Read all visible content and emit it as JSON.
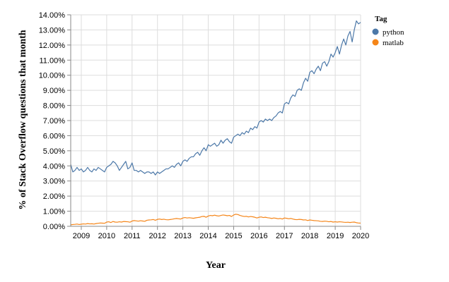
{
  "chart_data": {
    "type": "line",
    "xlabel": "Year",
    "ylabel": "% of Stack Overflow questions that month",
    "xlim": [
      "2008-08",
      "2020-01"
    ],
    "ylim": [
      0,
      14
    ],
    "y_tick_format": "percent_2dp",
    "x_ticks": [
      "2009",
      "2010",
      "2011",
      "2012",
      "2013",
      "2014",
      "2015",
      "2016",
      "2017",
      "2018",
      "2019",
      "2020"
    ],
    "y_ticks": [
      "0.00%",
      "1.00%",
      "2.00%",
      "3.00%",
      "4.00%",
      "5.00%",
      "6.00%",
      "7.00%",
      "8.00%",
      "9.00%",
      "10.00%",
      "11.00%",
      "12.00%",
      "13.00%",
      "14.00%"
    ],
    "grid": true,
    "legend": {
      "title": "Tag",
      "placement": "top-right"
    },
    "series": [
      {
        "name": "python",
        "color": "#4c78a8",
        "points": [
          [
            "2008-08",
            4.1
          ],
          [
            "2008-09",
            3.6
          ],
          [
            "2008-10",
            3.7
          ],
          [
            "2008-11",
            3.9
          ],
          [
            "2008-12",
            3.7
          ],
          [
            "2009-01",
            3.8
          ],
          [
            "2009-02",
            3.6
          ],
          [
            "2009-03",
            3.7
          ],
          [
            "2009-04",
            3.9
          ],
          [
            "2009-05",
            3.7
          ],
          [
            "2009-06",
            3.6
          ],
          [
            "2009-07",
            3.8
          ],
          [
            "2009-08",
            3.7
          ],
          [
            "2009-09",
            3.9
          ],
          [
            "2009-10",
            3.8
          ],
          [
            "2009-11",
            3.7
          ],
          [
            "2009-12",
            3.6
          ],
          [
            "2010-01",
            3.9
          ],
          [
            "2010-02",
            4.0
          ],
          [
            "2010-03",
            4.1
          ],
          [
            "2010-04",
            4.3
          ],
          [
            "2010-05",
            4.2
          ],
          [
            "2010-06",
            4.0
          ],
          [
            "2010-07",
            3.7
          ],
          [
            "2010-08",
            3.9
          ],
          [
            "2010-09",
            4.1
          ],
          [
            "2010-10",
            4.3
          ],
          [
            "2010-11",
            3.8
          ],
          [
            "2010-12",
            3.9
          ],
          [
            "2011-01",
            4.2
          ],
          [
            "2011-02",
            3.7
          ],
          [
            "2011-03",
            3.7
          ],
          [
            "2011-04",
            3.6
          ],
          [
            "2011-05",
            3.7
          ],
          [
            "2011-06",
            3.6
          ],
          [
            "2011-07",
            3.5
          ],
          [
            "2011-08",
            3.6
          ],
          [
            "2011-09",
            3.6
          ],
          [
            "2011-10",
            3.5
          ],
          [
            "2011-11",
            3.6
          ],
          [
            "2011-12",
            3.4
          ],
          [
            "2012-01",
            3.6
          ],
          [
            "2012-02",
            3.5
          ],
          [
            "2012-03",
            3.6
          ],
          [
            "2012-04",
            3.7
          ],
          [
            "2012-05",
            3.8
          ],
          [
            "2012-06",
            3.8
          ],
          [
            "2012-07",
            3.9
          ],
          [
            "2012-08",
            4.0
          ],
          [
            "2012-09",
            3.9
          ],
          [
            "2012-10",
            4.1
          ],
          [
            "2012-11",
            4.2
          ],
          [
            "2012-12",
            4.0
          ],
          [
            "2013-01",
            4.3
          ],
          [
            "2013-02",
            4.4
          ],
          [
            "2013-03",
            4.3
          ],
          [
            "2013-04",
            4.5
          ],
          [
            "2013-05",
            4.6
          ],
          [
            "2013-06",
            4.6
          ],
          [
            "2013-07",
            4.8
          ],
          [
            "2013-08",
            4.9
          ],
          [
            "2013-09",
            4.7
          ],
          [
            "2013-10",
            5.0
          ],
          [
            "2013-11",
            5.2
          ],
          [
            "2013-12",
            5.0
          ],
          [
            "2014-01",
            5.4
          ],
          [
            "2014-02",
            5.3
          ],
          [
            "2014-03",
            5.4
          ],
          [
            "2014-04",
            5.5
          ],
          [
            "2014-05",
            5.3
          ],
          [
            "2014-06",
            5.4
          ],
          [
            "2014-07",
            5.7
          ],
          [
            "2014-08",
            5.5
          ],
          [
            "2014-09",
            5.7
          ],
          [
            "2014-10",
            5.8
          ],
          [
            "2014-11",
            5.6
          ],
          [
            "2014-12",
            5.5
          ],
          [
            "2015-01",
            5.9
          ],
          [
            "2015-02",
            6.0
          ],
          [
            "2015-03",
            6.1
          ],
          [
            "2015-04",
            6.0
          ],
          [
            "2015-05",
            6.2
          ],
          [
            "2015-06",
            6.1
          ],
          [
            "2015-07",
            6.3
          ],
          [
            "2015-08",
            6.2
          ],
          [
            "2015-09",
            6.5
          ],
          [
            "2015-10",
            6.4
          ],
          [
            "2015-11",
            6.6
          ],
          [
            "2015-12",
            6.5
          ],
          [
            "2016-01",
            6.9
          ],
          [
            "2016-02",
            7.0
          ],
          [
            "2016-03",
            6.9
          ],
          [
            "2016-04",
            7.1
          ],
          [
            "2016-05",
            7.0
          ],
          [
            "2016-06",
            7.1
          ],
          [
            "2016-07",
            7.0
          ],
          [
            "2016-08",
            7.2
          ],
          [
            "2016-09",
            7.3
          ],
          [
            "2016-10",
            7.5
          ],
          [
            "2016-11",
            7.6
          ],
          [
            "2016-12",
            7.5
          ],
          [
            "2017-01",
            8.1
          ],
          [
            "2017-02",
            8.2
          ],
          [
            "2017-03",
            8.1
          ],
          [
            "2017-04",
            8.5
          ],
          [
            "2017-05",
            8.7
          ],
          [
            "2017-06",
            8.6
          ],
          [
            "2017-07",
            9.0
          ],
          [
            "2017-08",
            9.1
          ],
          [
            "2017-09",
            9.0
          ],
          [
            "2017-10",
            9.5
          ],
          [
            "2017-11",
            9.8
          ],
          [
            "2017-12",
            9.6
          ],
          [
            "2018-01",
            10.2
          ],
          [
            "2018-02",
            10.3
          ],
          [
            "2018-03",
            10.1
          ],
          [
            "2018-04",
            10.4
          ],
          [
            "2018-05",
            10.6
          ],
          [
            "2018-06",
            10.3
          ],
          [
            "2018-07",
            10.8
          ],
          [
            "2018-08",
            10.9
          ],
          [
            "2018-09",
            10.6
          ],
          [
            "2018-10",
            10.9
          ],
          [
            "2018-11",
            11.4
          ],
          [
            "2018-12",
            11.2
          ],
          [
            "2019-01",
            11.5
          ],
          [
            "2019-02",
            11.9
          ],
          [
            "2019-03",
            11.4
          ],
          [
            "2019-04",
            12.0
          ],
          [
            "2019-05",
            12.4
          ],
          [
            "2019-06",
            12.0
          ],
          [
            "2019-07",
            12.6
          ],
          [
            "2019-08",
            12.9
          ],
          [
            "2019-09",
            12.2
          ],
          [
            "2019-10",
            13.0
          ],
          [
            "2019-11",
            13.6
          ],
          [
            "2019-12",
            13.4
          ],
          [
            "2020-01",
            13.5
          ]
        ]
      },
      {
        "name": "matlab",
        "color": "#f58518",
        "points": [
          [
            "2008-08",
            0.1
          ],
          [
            "2008-09",
            0.12
          ],
          [
            "2008-10",
            0.13
          ],
          [
            "2008-11",
            0.15
          ],
          [
            "2008-12",
            0.12
          ],
          [
            "2009-01",
            0.14
          ],
          [
            "2009-02",
            0.16
          ],
          [
            "2009-03",
            0.15
          ],
          [
            "2009-04",
            0.18
          ],
          [
            "2009-05",
            0.16
          ],
          [
            "2009-06",
            0.17
          ],
          [
            "2009-07",
            0.15
          ],
          [
            "2009-08",
            0.18
          ],
          [
            "2009-09",
            0.2
          ],
          [
            "2009-10",
            0.22
          ],
          [
            "2009-11",
            0.21
          ],
          [
            "2009-12",
            0.2
          ],
          [
            "2010-01",
            0.28
          ],
          [
            "2010-02",
            0.3
          ],
          [
            "2010-03",
            0.25
          ],
          [
            "2010-04",
            0.32
          ],
          [
            "2010-05",
            0.28
          ],
          [
            "2010-06",
            0.27
          ],
          [
            "2010-07",
            0.3
          ],
          [
            "2010-08",
            0.28
          ],
          [
            "2010-09",
            0.32
          ],
          [
            "2010-10",
            0.31
          ],
          [
            "2010-11",
            0.3
          ],
          [
            "2010-12",
            0.27
          ],
          [
            "2011-01",
            0.35
          ],
          [
            "2011-02",
            0.38
          ],
          [
            "2011-03",
            0.36
          ],
          [
            "2011-04",
            0.34
          ],
          [
            "2011-05",
            0.37
          ],
          [
            "2011-06",
            0.35
          ],
          [
            "2011-07",
            0.33
          ],
          [
            "2011-08",
            0.4
          ],
          [
            "2011-09",
            0.42
          ],
          [
            "2011-10",
            0.43
          ],
          [
            "2011-11",
            0.45
          ],
          [
            "2011-12",
            0.4
          ],
          [
            "2012-01",
            0.46
          ],
          [
            "2012-02",
            0.48
          ],
          [
            "2012-03",
            0.45
          ],
          [
            "2012-04",
            0.47
          ],
          [
            "2012-05",
            0.44
          ],
          [
            "2012-06",
            0.43
          ],
          [
            "2012-07",
            0.45
          ],
          [
            "2012-08",
            0.47
          ],
          [
            "2012-09",
            0.5
          ],
          [
            "2012-10",
            0.52
          ],
          [
            "2012-11",
            0.5
          ],
          [
            "2012-12",
            0.48
          ],
          [
            "2013-01",
            0.55
          ],
          [
            "2013-02",
            0.58
          ],
          [
            "2013-03",
            0.55
          ],
          [
            "2013-04",
            0.57
          ],
          [
            "2013-05",
            0.55
          ],
          [
            "2013-06",
            0.53
          ],
          [
            "2013-07",
            0.56
          ],
          [
            "2013-08",
            0.58
          ],
          [
            "2013-09",
            0.6
          ],
          [
            "2013-10",
            0.65
          ],
          [
            "2013-11",
            0.66
          ],
          [
            "2013-12",
            0.6
          ],
          [
            "2014-01",
            0.68
          ],
          [
            "2014-02",
            0.72
          ],
          [
            "2014-03",
            0.7
          ],
          [
            "2014-04",
            0.74
          ],
          [
            "2014-05",
            0.7
          ],
          [
            "2014-06",
            0.68
          ],
          [
            "2014-07",
            0.72
          ],
          [
            "2014-08",
            0.75
          ],
          [
            "2014-09",
            0.73
          ],
          [
            "2014-10",
            0.7
          ],
          [
            "2014-11",
            0.72
          ],
          [
            "2014-12",
            0.65
          ],
          [
            "2015-01",
            0.75
          ],
          [
            "2015-02",
            0.8
          ],
          [
            "2015-03",
            0.78
          ],
          [
            "2015-04",
            0.72
          ],
          [
            "2015-05",
            0.68
          ],
          [
            "2015-06",
            0.65
          ],
          [
            "2015-07",
            0.66
          ],
          [
            "2015-08",
            0.62
          ],
          [
            "2015-09",
            0.65
          ],
          [
            "2015-10",
            0.63
          ],
          [
            "2015-11",
            0.6
          ],
          [
            "2015-12",
            0.55
          ],
          [
            "2016-01",
            0.6
          ],
          [
            "2016-02",
            0.62
          ],
          [
            "2016-03",
            0.58
          ],
          [
            "2016-04",
            0.6
          ],
          [
            "2016-05",
            0.57
          ],
          [
            "2016-06",
            0.55
          ],
          [
            "2016-07",
            0.52
          ],
          [
            "2016-08",
            0.55
          ],
          [
            "2016-09",
            0.53
          ],
          [
            "2016-10",
            0.5
          ],
          [
            "2016-11",
            0.52
          ],
          [
            "2016-12",
            0.48
          ],
          [
            "2017-01",
            0.55
          ],
          [
            "2017-02",
            0.53
          ],
          [
            "2017-03",
            0.5
          ],
          [
            "2017-04",
            0.52
          ],
          [
            "2017-05",
            0.48
          ],
          [
            "2017-06",
            0.45
          ],
          [
            "2017-07",
            0.44
          ],
          [
            "2017-08",
            0.46
          ],
          [
            "2017-09",
            0.45
          ],
          [
            "2017-10",
            0.42
          ],
          [
            "2017-11",
            0.43
          ],
          [
            "2017-12",
            0.38
          ],
          [
            "2018-01",
            0.42
          ],
          [
            "2018-02",
            0.4
          ],
          [
            "2018-03",
            0.38
          ],
          [
            "2018-04",
            0.37
          ],
          [
            "2018-05",
            0.36
          ],
          [
            "2018-06",
            0.33
          ],
          [
            "2018-07",
            0.32
          ],
          [
            "2018-08",
            0.34
          ],
          [
            "2018-09",
            0.33
          ],
          [
            "2018-10",
            0.3
          ],
          [
            "2018-11",
            0.32
          ],
          [
            "2018-12",
            0.28
          ],
          [
            "2019-01",
            0.3
          ],
          [
            "2019-02",
            0.28
          ],
          [
            "2019-03",
            0.3
          ],
          [
            "2019-04",
            0.29
          ],
          [
            "2019-05",
            0.27
          ],
          [
            "2019-06",
            0.26
          ],
          [
            "2019-07",
            0.27
          ],
          [
            "2019-08",
            0.25
          ],
          [
            "2019-09",
            0.27
          ],
          [
            "2019-10",
            0.28
          ],
          [
            "2019-11",
            0.24
          ],
          [
            "2019-12",
            0.22
          ],
          [
            "2020-01",
            0.21
          ]
        ]
      }
    ]
  }
}
